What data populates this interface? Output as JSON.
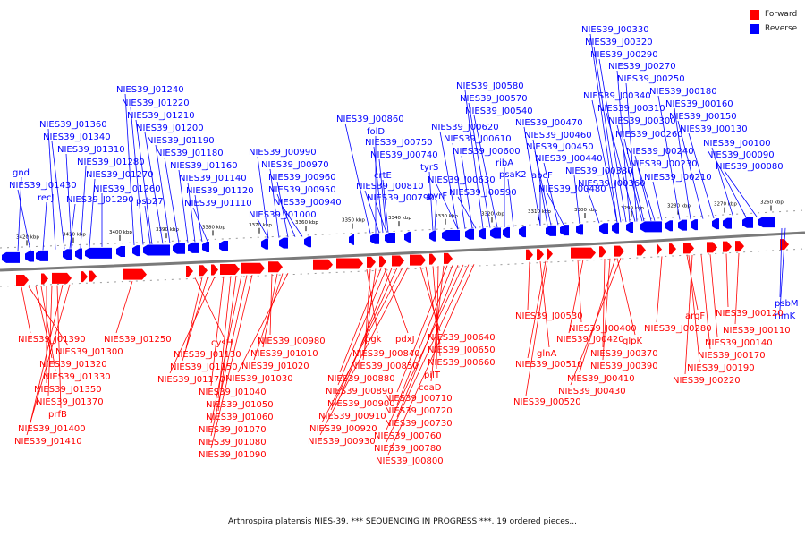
{
  "colors": {
    "forward": "#ff0000",
    "reverse": "#0000ff",
    "axis": "#999999"
  },
  "legend": [
    {
      "label": "Forward",
      "color": "#ff0000"
    },
    {
      "label": "Reverse",
      "color": "#0000ff"
    }
  ],
  "caption": "Arthrospira platensis NIES-39, *** SEQUENCING IN PROGRESS ***, 19 ordered pieces...",
  "axis_ticks": [
    "3420 kbp",
    "3410 kbp",
    "3400 kbp",
    "3390 kbp",
    "3380 kbp",
    "3370 kbp",
    "3360 kbp",
    "3350 kbp",
    "3340 kbp",
    "3330 kbp",
    "3320 kbp",
    "3310 kbp",
    "3300 kbp",
    "3290 kbp",
    "3280 kbp",
    "3270 kbp",
    "3260 kbp"
  ],
  "reverse_labels": [
    "gnd",
    "NIES39_J01430",
    "recJ",
    "NIES39_J01360",
    "NIES39_J01340",
    "NIES39_J01310",
    "NIES39_J01280",
    "NIES39_J01270",
    "NIES39_J01260",
    "NIES39_J01290",
    "NIES39_J01240",
    "NIES39_J01220",
    "NIES39_J01210",
    "NIES39_J01200",
    "NIES39_J01190",
    "NIES39_J01180",
    "NIES39_J01160",
    "NIES39_J01140",
    "NIES39_J01120",
    "NIES39_J01110",
    "psb27",
    "NIES39_J00990",
    "NIES39_J00970",
    "NIES39_J00960",
    "NIES39_J00950",
    "NIES39_J00940",
    "NIES39_J01000",
    "NIES39_J00860",
    "folD",
    "NIES39_J00750",
    "NIES39_J00740",
    "crtE",
    "NIES39_J00810",
    "NIES39_J00790",
    "tyrS",
    "pyrF",
    "NIES39_J00580",
    "NIES39_J00570",
    "NIES39_J00540",
    "NIES39_J00620",
    "NIES39_J00610",
    "NIES39_J00600",
    "NIES39_J00630",
    "NIES39_J00590",
    "ribA",
    "psaK2",
    "NIES39_J00470",
    "NIES39_J00460",
    "NIES39_J00450",
    "NIES39_J00440",
    "apcF",
    "NIES39_J00480",
    "NIES39_J00380",
    "NIES39_J00360",
    "NIES39_J00330",
    "NIES39_J00320",
    "NIES39_J00290",
    "NIES39_J00270",
    "NIES39_J00250",
    "NIES39_J00340",
    "NIES39_J00310",
    "NIES39_J00300",
    "NIES39_J00260",
    "NIES39_J00240",
    "NIES39_J00230",
    "NIES39_J00210",
    "NIES39_J00180",
    "NIES39_J00160",
    "NIES39_J00150",
    "NIES39_J00130",
    "NIES39_J00100",
    "NIES39_J00090",
    "NIES39_J00080",
    "psbM",
    "rimK"
  ],
  "forward_labels": [
    "NIES39_J01390",
    "NIES39_J01300",
    "NIES39_J01320",
    "NIES39_J01330",
    "NIES39_J01350",
    "NIES39_J01370",
    "prfB",
    "NIES39_J01400",
    "NIES39_J01410",
    "NIES39_J01250",
    "cysH",
    "NIES39_J01130",
    "NIES39_J01150",
    "NIES39_J01170",
    "NIES39_J01040",
    "NIES39_J01050",
    "NIES39_J01060",
    "NIES39_J01070",
    "NIES39_J01080",
    "NIES39_J01090",
    "NIES39_J00980",
    "NIES39_J01010",
    "NIES39_J01020",
    "NIES39_J01030",
    "pgk",
    "pdxJ",
    "NIES39_J00840",
    "NIES39_J00850",
    "NIES39_J00880",
    "NIES39_J00890",
    "NIES39_J00900",
    "NIES39_J00910",
    "NIES39_J00920",
    "NIES39_J00930",
    "NIES39_J00640",
    "NIES39_J00650",
    "NIES39_J00660",
    "pilT",
    "coaD",
    "NIES39_J00710",
    "NIES39_J00720",
    "NIES39_J00730",
    "NIES39_J00760",
    "NIES39_J00780",
    "NIES39_J00800",
    "NIES39_J00530",
    "glnA",
    "NIES39_J00510",
    "NIES39_J00520",
    "NIES39_J00400",
    "NIES39_J00420",
    "glpK",
    "NIES39_J00370",
    "NIES39_J00390",
    "NIES39_J00410",
    "NIES39_J00430",
    "NIES39_J00280",
    "argF",
    "NIES39_J00190",
    "NIES39_J00220",
    "NIES39_J00170",
    "NIES39_J00140",
    "NIES39_J00120",
    "NIES39_J00110"
  ]
}
